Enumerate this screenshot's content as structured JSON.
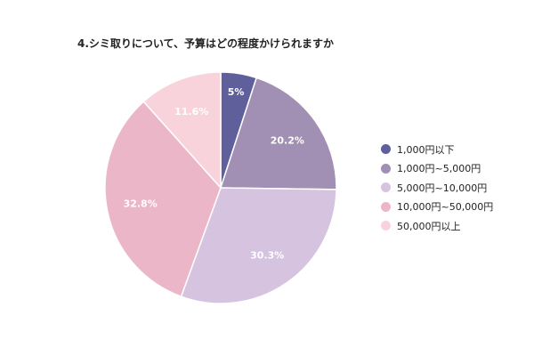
{
  "chart_data": {
    "type": "pie",
    "title": "4.シミ取りについて、予算はどの程度かけられますか",
    "categories": [
      "1,000円以下",
      "1,000円~5,000円",
      "5,000円~10,000円",
      "10,000円~50,000円",
      "50,000円以上"
    ],
    "values": [
      5.0,
      20.2,
      30.3,
      32.8,
      11.6
    ],
    "labels": [
      "5%",
      "20.2%",
      "30.3%",
      "32.8%",
      "11.6%"
    ],
    "colors": [
      "#5f5f9c",
      "#a190b3",
      "#d5c3e0",
      "#ebb7c8",
      "#f8d3db"
    ],
    "legend": "right",
    "start": "top",
    "direction": "clockwise"
  }
}
